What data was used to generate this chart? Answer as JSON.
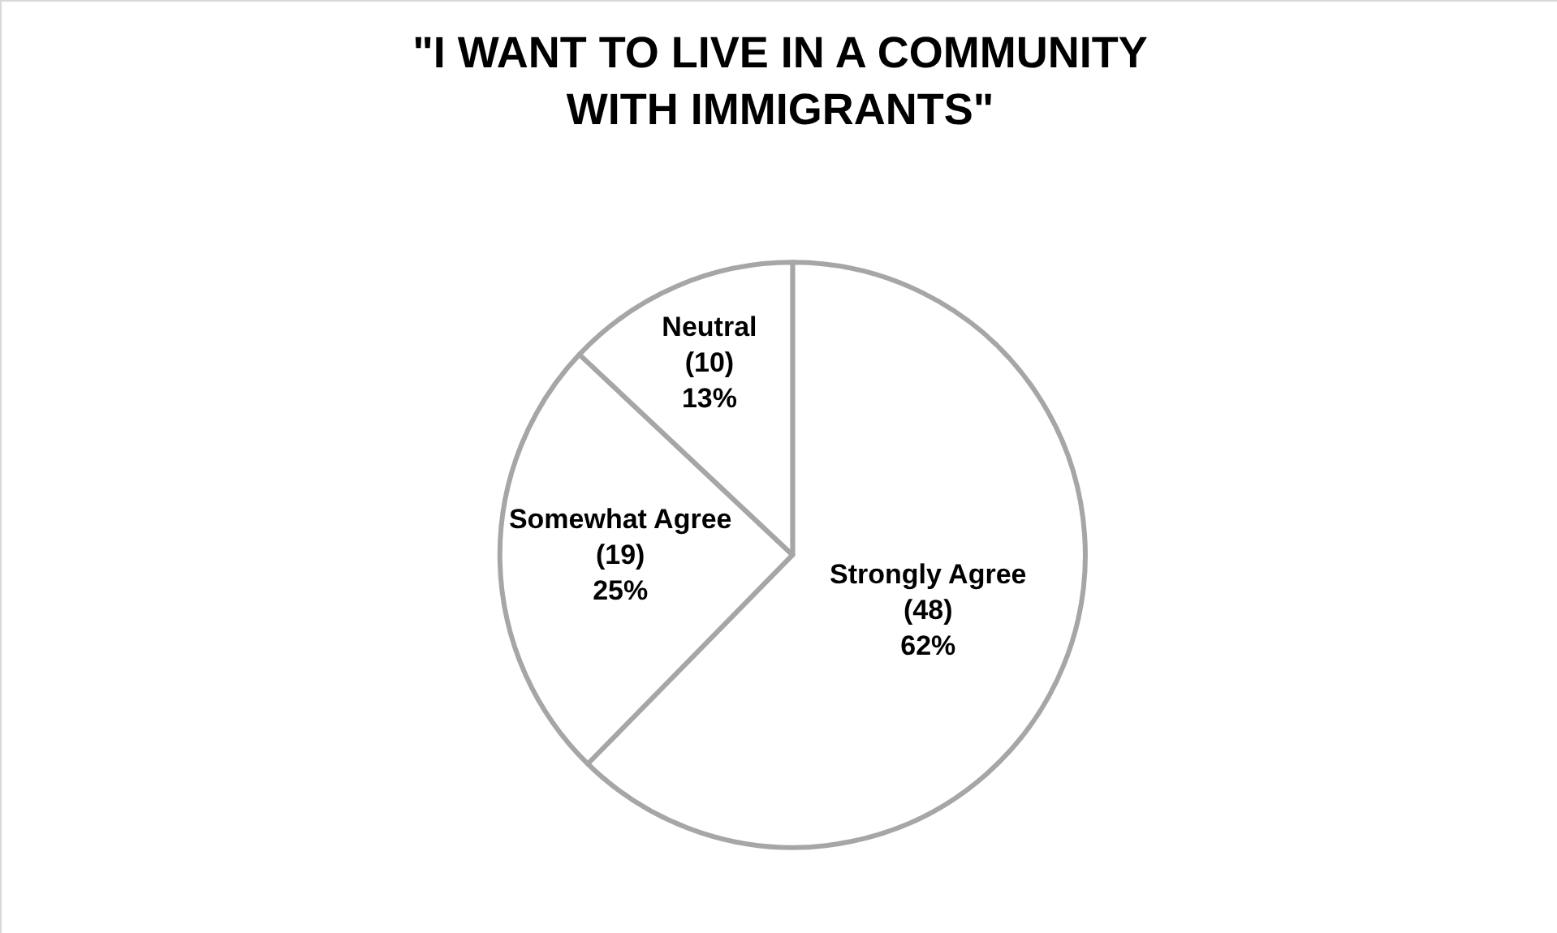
{
  "chart_data": {
    "type": "pie",
    "title": "\"I WANT TO LIVE IN A COMMUNITY WITH IMMIGRANTS\"",
    "categories": [
      "Strongly Agree",
      "Somewhat Agree",
      "Neutral"
    ],
    "values": [
      48,
      19,
      10
    ],
    "value_labels": [
      "(48) 62%",
      "(19) 25%",
      "(10) 13%"
    ],
    "colors": [
      "#ffffff",
      "#ffffff",
      "#ffffff"
    ],
    "legend": false
  }
}
